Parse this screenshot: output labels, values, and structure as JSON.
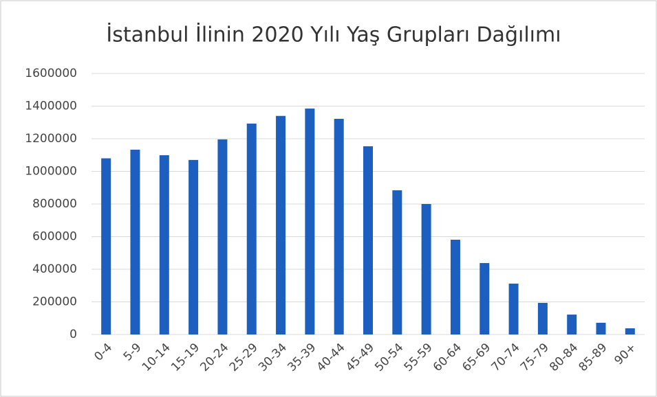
{
  "chart_data": {
    "type": "bar",
    "title": "İstanbul İlinin  2020 Yılı Yaş Grupları Dağılımı",
    "categories": [
      "0-4",
      "5-9",
      "10-14",
      "15-19",
      "20-24",
      "25-29",
      "30-34",
      "35-39",
      "40-44",
      "45-49",
      "50-54",
      "55-59",
      "60-64",
      "65-69",
      "70-74",
      "75-79",
      "80-84",
      "85-89",
      "90+"
    ],
    "values": [
      1080000,
      1133000,
      1099000,
      1070000,
      1196000,
      1293000,
      1340000,
      1385000,
      1322000,
      1154000,
      884000,
      800000,
      581000,
      438000,
      312000,
      194000,
      122000,
      72000,
      38000
    ],
    "color": "#1c5fbf",
    "ylim": [
      0,
      1600000
    ],
    "yticks": [
      0,
      200000,
      400000,
      600000,
      800000,
      1000000,
      1200000,
      1400000,
      1600000
    ],
    "grid": true
  }
}
